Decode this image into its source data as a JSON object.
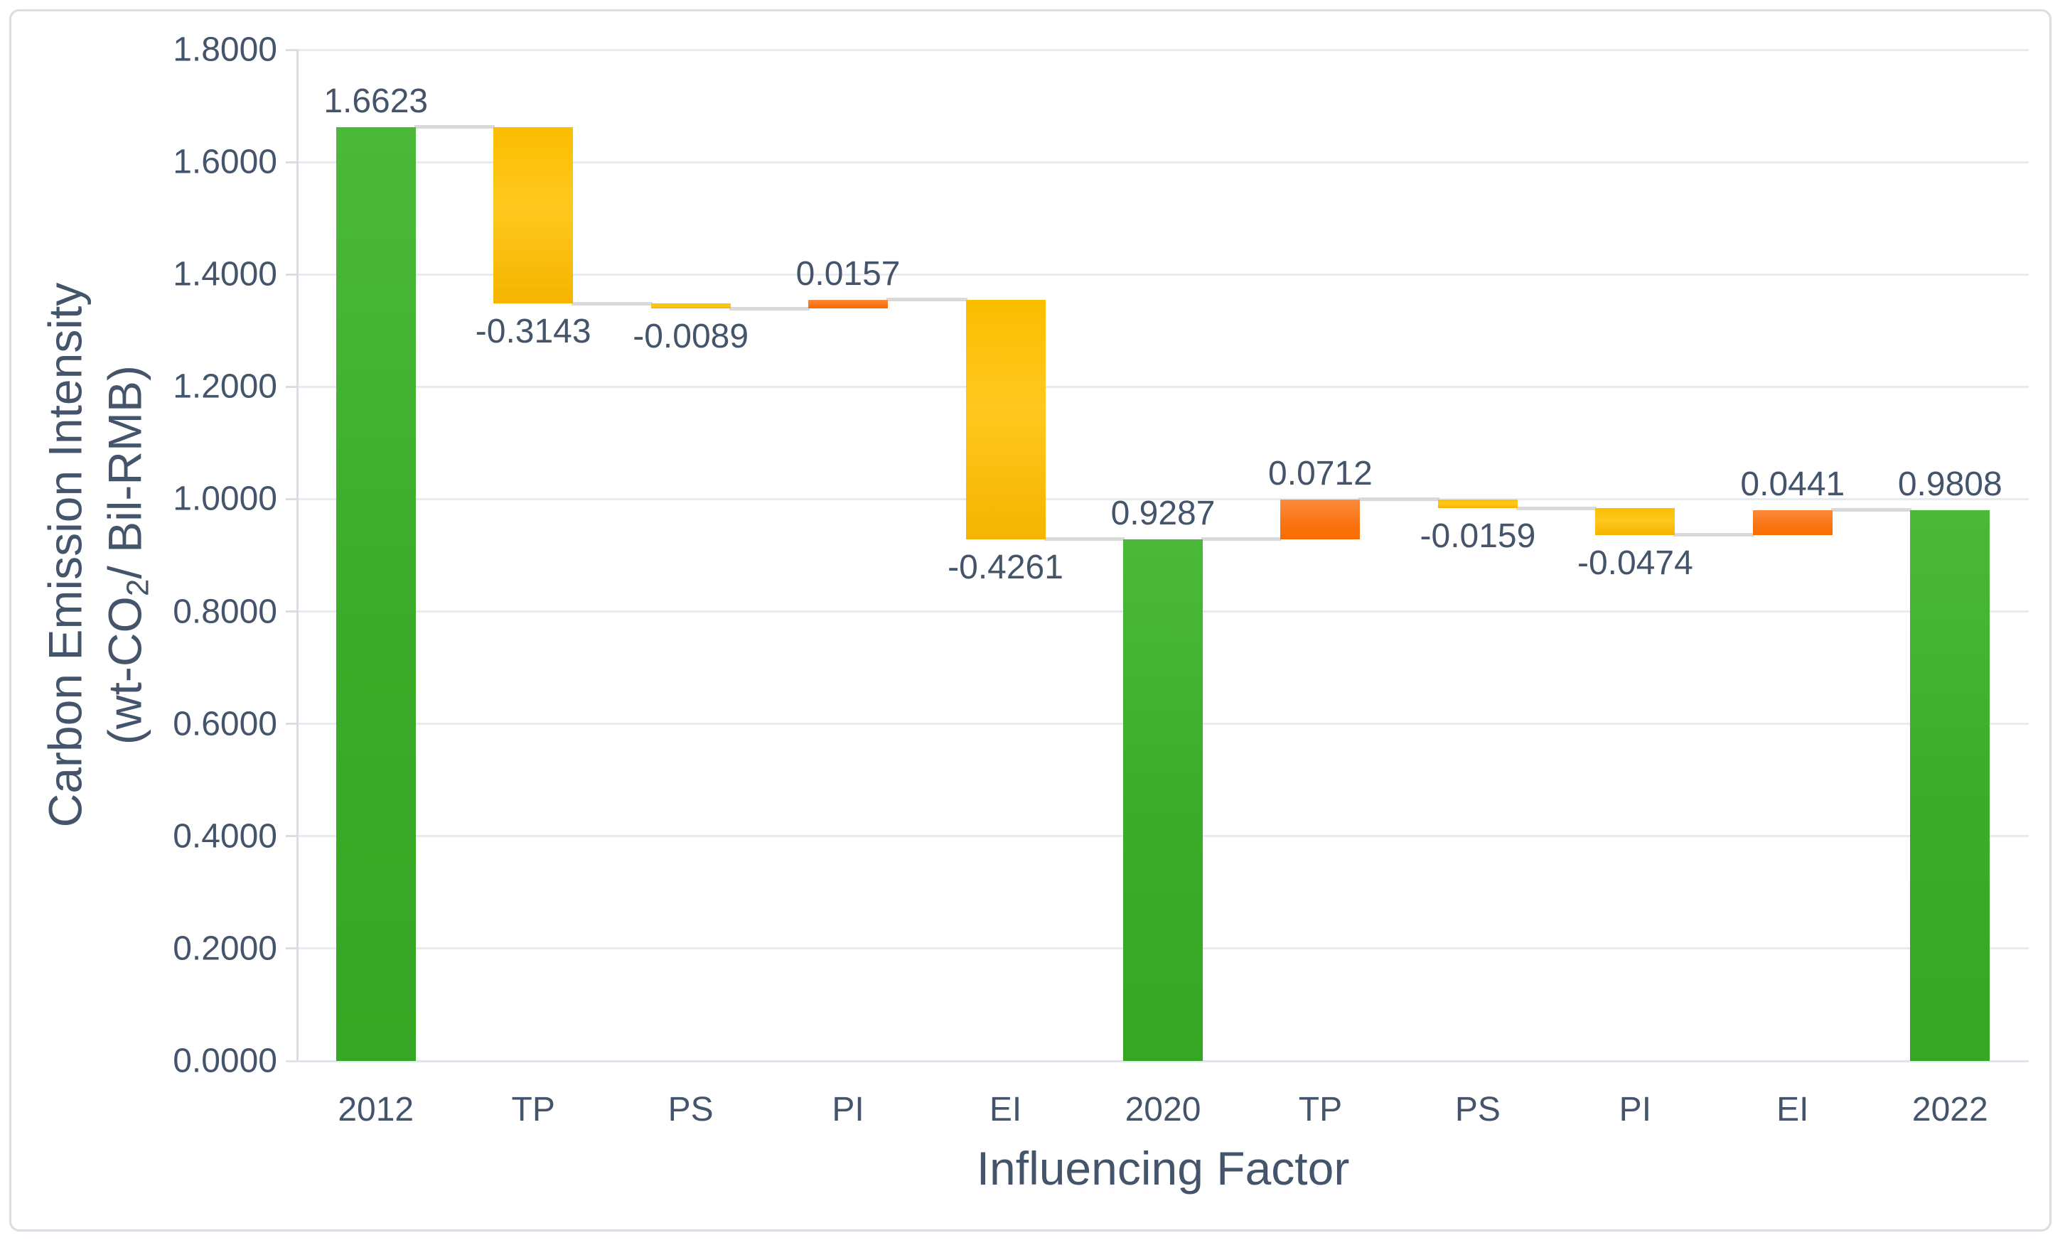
{
  "chart_data": {
    "type": "bar",
    "subtype": "waterfall",
    "title": "",
    "xlabel": "Influencing Factor",
    "ylabel": {
      "line1": "Carbon Emission Intensity",
      "line2_pre": "(wt-CO",
      "line2_sub": "2",
      "line2_post": "/ Bil-RMB)"
    },
    "categories": [
      "2012",
      "TP",
      "PS",
      "PI",
      "EI",
      "2020",
      "TP",
      "PS",
      "PI",
      "EI",
      "2022"
    ],
    "bars": [
      {
        "category": "2012",
        "value": 1.6623,
        "label": "1.6623",
        "kind": "total"
      },
      {
        "category": "TP",
        "value": -0.3143,
        "label": "-0.3143",
        "kind": "decrease"
      },
      {
        "category": "PS",
        "value": -0.0089,
        "label": "-0.0089",
        "kind": "decrease"
      },
      {
        "category": "PI",
        "value": 0.0157,
        "label": "0.0157",
        "kind": "increase"
      },
      {
        "category": "EI",
        "value": -0.4261,
        "label": "-0.4261",
        "kind": "decrease"
      },
      {
        "category": "2020",
        "value": 0.9287,
        "label": "0.9287",
        "kind": "total"
      },
      {
        "category": "TP",
        "value": 0.0712,
        "label": "0.0712",
        "kind": "increase"
      },
      {
        "category": "PS",
        "value": -0.0159,
        "label": "-0.0159",
        "kind": "decrease"
      },
      {
        "category": "PI",
        "value": -0.0474,
        "label": "-0.0474",
        "kind": "decrease"
      },
      {
        "category": "EI",
        "value": 0.0441,
        "label": "0.0441",
        "kind": "increase"
      },
      {
        "category": "2022",
        "value": 0.9808,
        "label": "0.9808",
        "kind": "total"
      }
    ],
    "y_axis": {
      "min": 0.0,
      "max": 1.8,
      "step": 0.2,
      "tick_labels": [
        "0.0000",
        "0.2000",
        "0.4000",
        "0.6000",
        "0.8000",
        "1.0000",
        "1.2000",
        "1.4000",
        "1.6000",
        "1.8000"
      ]
    },
    "ylim": [
      0.0,
      1.8
    ],
    "grid": true,
    "legend": false,
    "colors": {
      "total": "#3aac29",
      "increase": "#f97413",
      "decrease": "#ffc110",
      "text": "#44546a",
      "gridline": "#e7eaf1",
      "axis": "#d9dee6",
      "connector": "#d9d9d9"
    }
  }
}
